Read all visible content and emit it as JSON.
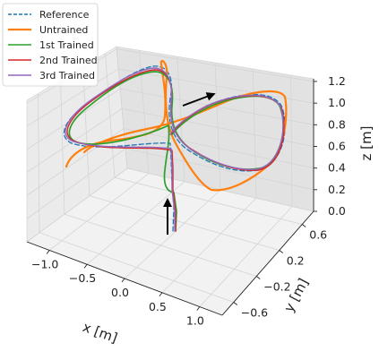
{
  "chart_data": {
    "type": "line3d",
    "xlabel": "x [m]",
    "ylabel": "y [m]",
    "zlabel": "z [m]",
    "x_ticks": [
      "−1.0",
      "−0.5",
      "0.0",
      "0.5",
      "1.0"
    ],
    "y_ticks": [
      "−0.6",
      "−0.2",
      "0.2",
      "0.6"
    ],
    "z_ticks": [
      "0.0",
      "0.2",
      "0.4",
      "0.6",
      "0.8",
      "1.0",
      "1.2"
    ],
    "xlim": [
      -1.3,
      1.3
    ],
    "ylim": [
      -0.7,
      0.7
    ],
    "zlim": [
      0.0,
      1.2
    ],
    "grid": true,
    "legend": "top-left",
    "series": [
      {
        "name": "Reference",
        "color": "#1f77b4",
        "style": "dashed"
      },
      {
        "name": "Untrained",
        "color": "#ff7f0e",
        "style": "solid"
      },
      {
        "name": "1st Trained",
        "color": "#2ca02c",
        "style": "solid"
      },
      {
        "name": "2nd Trained",
        "color": "#d62728",
        "style": "solid"
      },
      {
        "name": "3rd Trained",
        "color": "#9467bd",
        "style": "solid"
      }
    ],
    "annotations": [
      {
        "type": "arrow",
        "meaning": "takeoff direction (upward)"
      },
      {
        "type": "arrow",
        "meaning": "direction of travel along loop"
      }
    ]
  }
}
